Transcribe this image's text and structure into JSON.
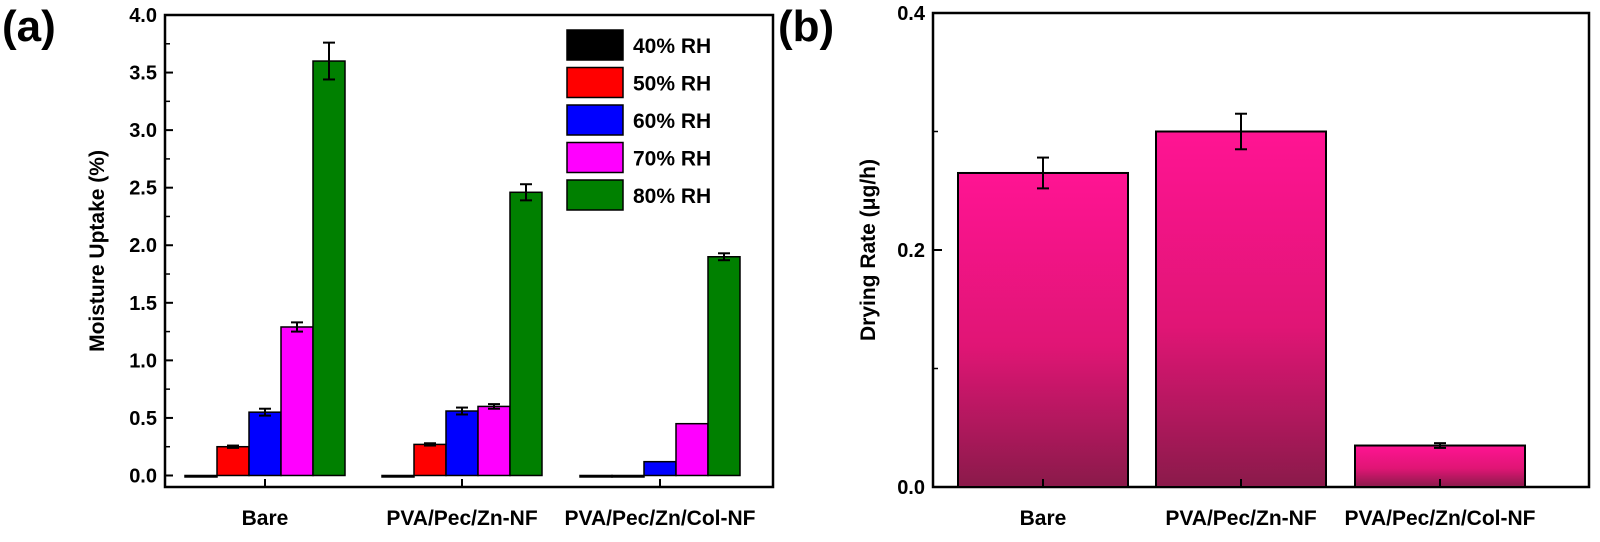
{
  "panels": {
    "a_label": "(a)",
    "b_label": "(b)"
  },
  "chart_data": [
    {
      "panel": "(a)",
      "type": "bar",
      "ylabel": "Moisture Uptake (%)",
      "xlabel": "",
      "ylim": [
        -0.1,
        4.0
      ],
      "yticks": [
        "0.0",
        "0.5",
        "1.0",
        "1.5",
        "2.0",
        "2.5",
        "3.0",
        "3.5",
        "4.0"
      ],
      "categories": [
        "Bare",
        "PVA/Pec/Zn-NF",
        "PVA/Pec/Zn/Col-NF"
      ],
      "legend_position": "top-right",
      "series": [
        {
          "name": "40% RH",
          "color": "#000000",
          "values": [
            0.0,
            0.0,
            0.0
          ],
          "errors": [
            0.0,
            0.0,
            0.0
          ]
        },
        {
          "name": "50% RH",
          "color": "#ff0000",
          "values": [
            0.25,
            0.27,
            0.0
          ],
          "errors": [
            0.01,
            0.01,
            0.0
          ]
        },
        {
          "name": "60% RH",
          "color": "#0000ff",
          "values": [
            0.55,
            0.56,
            0.12
          ],
          "errors": [
            0.03,
            0.03,
            0.0
          ]
        },
        {
          "name": "70% RH",
          "color": "#ff00ff",
          "values": [
            1.29,
            0.6,
            0.45
          ],
          "errors": [
            0.04,
            0.02,
            0.0
          ]
        },
        {
          "name": "80% RH",
          "color": "#008000",
          "values": [
            3.6,
            2.46,
            1.9
          ],
          "errors": [
            0.16,
            0.07,
            0.03
          ]
        }
      ]
    },
    {
      "panel": "(b)",
      "type": "bar",
      "ylabel": "Drying Rate (μg/h)",
      "xlabel": "",
      "ylim": [
        0.0,
        0.4
      ],
      "yticks": [
        "0.0",
        "0.2",
        "0.4"
      ],
      "categories": [
        "Bare",
        "PVA/Pec/Zn-NF",
        "PVA/Pec/Zn/Col-NF"
      ],
      "values": [
        0.265,
        0.3,
        0.035
      ],
      "errors": [
        0.013,
        0.015,
        0.002
      ],
      "bar_color_top": "#ff1493",
      "bar_color_bottom": "#8a1a4a"
    }
  ]
}
